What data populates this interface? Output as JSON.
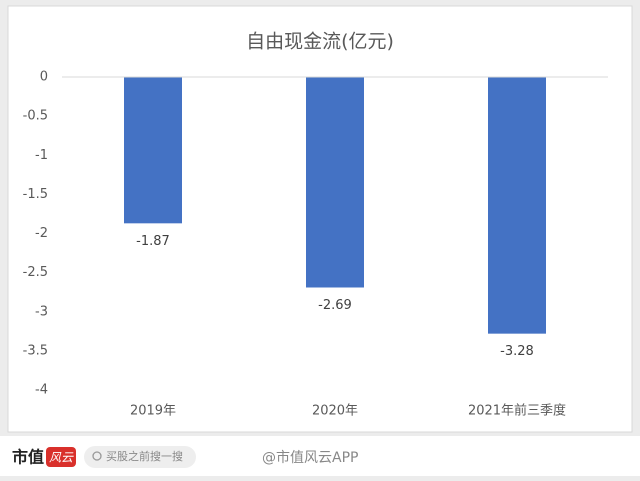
{
  "chart_data": {
    "type": "bar",
    "title": "自由现金流(亿元)",
    "categories": [
      "2019年",
      "2020年",
      "2021年前三季度"
    ],
    "values": [
      -1.87,
      -2.69,
      -3.28
    ],
    "color": "#4472c4",
    "ylim": [
      -4,
      0
    ],
    "yticks": [
      0,
      -0.5,
      -1,
      -1.5,
      -2,
      -2.5,
      -3,
      -3.5,
      -4
    ],
    "grid": false
  },
  "footer": {
    "logo": "市值",
    "logo_badge": "风云",
    "search": "买股之前搜一搜",
    "watermark": "@市值风云APP"
  }
}
